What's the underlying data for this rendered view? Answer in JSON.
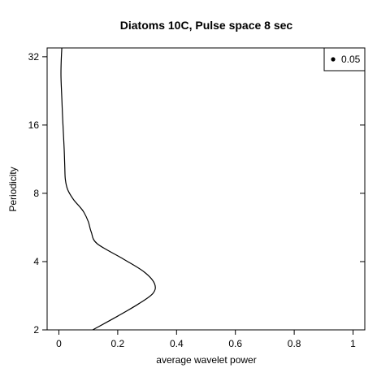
{
  "chart_data": {
    "type": "line",
    "title": "Diatoms 10C, Pulse space 8 sec",
    "xlabel": "average wavelet power",
    "ylabel": "Periodicity",
    "xlim": [
      -0.04,
      1.04
    ],
    "ylim": [
      2,
      35
    ],
    "y_scale": "log2",
    "x_ticks": [
      0,
      0.2,
      0.4,
      0.6,
      0.8,
      1
    ],
    "x_tick_labels": [
      "0",
      "0.2",
      "0.4",
      "0.6",
      "0.8",
      "1"
    ],
    "y_ticks": [
      2,
      4,
      8,
      16,
      32
    ],
    "y_tick_labels": [
      "2",
      "4",
      "8",
      "16",
      "32"
    ],
    "grid": false,
    "legend": {
      "position": "top-right",
      "marker": "dot",
      "label": "0.05"
    },
    "series": [
      {
        "x": [
          0.115,
          0.2,
          0.27,
          0.32,
          0.325,
          0.29,
          0.22,
          0.13,
          0.11,
          0.1,
          0.085,
          0.07,
          0.05,
          0.03,
          0.022,
          0.02,
          0.018,
          0.015,
          0.012,
          0.01,
          0.008,
          0.007,
          0.008,
          0.01
        ],
        "y": [
          2.0,
          2.3,
          2.6,
          2.9,
          3.2,
          3.6,
          4.1,
          4.8,
          5.4,
          6.0,
          6.6,
          7.0,
          7.5,
          8.3,
          9.2,
          10.5,
          12.5,
          15.0,
          18.0,
          21.0,
          24.0,
          27.0,
          31.0,
          35.0
        ]
      }
    ]
  }
}
